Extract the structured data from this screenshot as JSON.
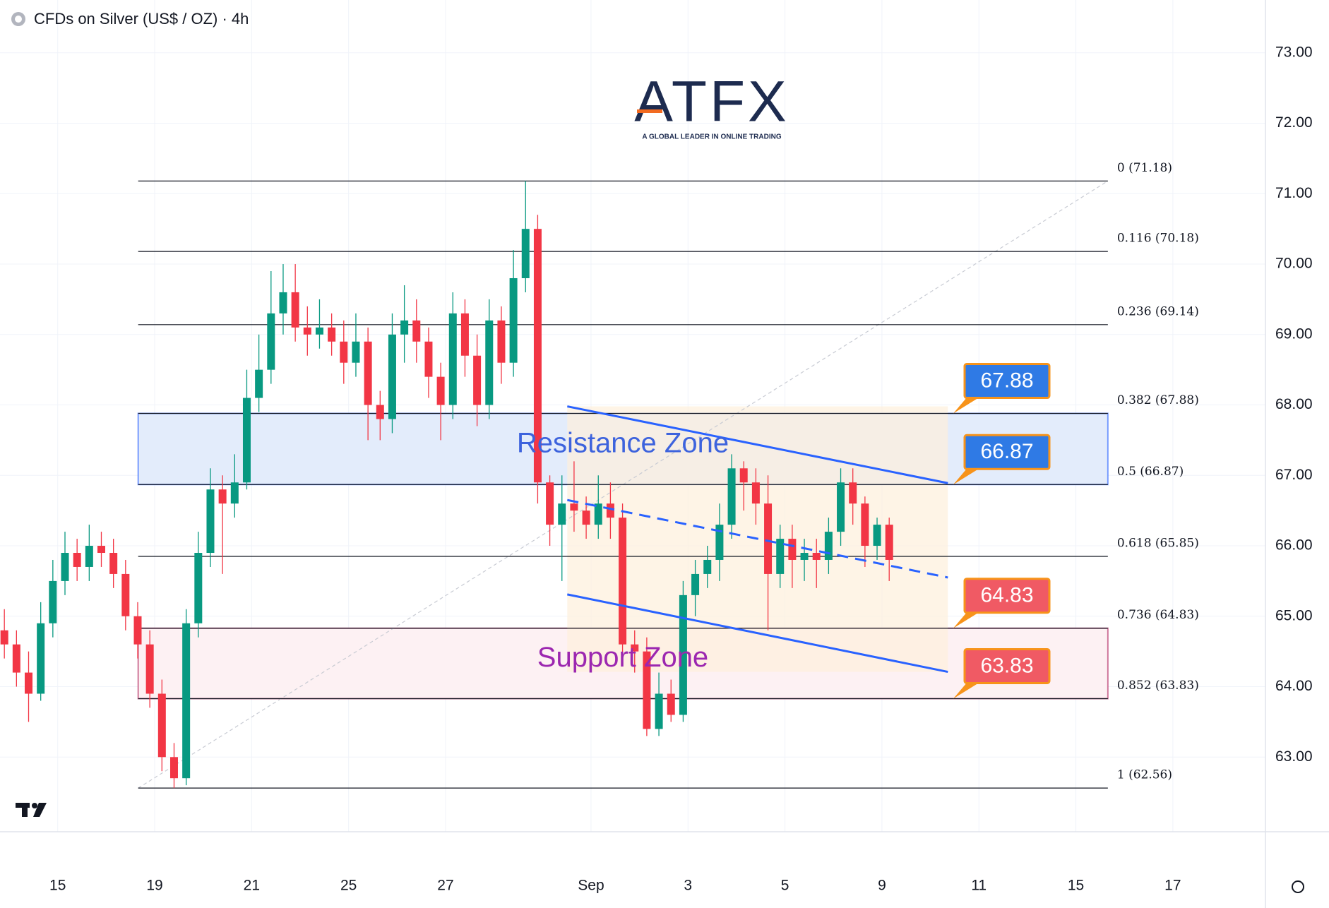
{
  "chart_data": {
    "type": "candlestick",
    "title": "CFDs on Silver (US$ / OZ) · 4h",
    "watermark": {
      "name": "ATFX",
      "tagline": "A GLOBAL LEADER IN ONLINE TRADING"
    },
    "up_color": "#089981",
    "down_color": "#f23645",
    "grid": true,
    "xlim": [
      -1.19,
      24.91
    ],
    "ylim": [
      61.94,
      73.75
    ],
    "xticks": [
      {
        "value": 0,
        "label": "15"
      },
      {
        "value": 2,
        "label": "19"
      },
      {
        "value": 4,
        "label": "21"
      },
      {
        "value": 6,
        "label": "25"
      },
      {
        "value": 8,
        "label": "27"
      },
      {
        "value": 11,
        "label": "Sep"
      },
      {
        "value": 13,
        "label": "3"
      },
      {
        "value": 15,
        "label": "5"
      },
      {
        "value": 17,
        "label": "9"
      },
      {
        "value": 19,
        "label": "11"
      },
      {
        "value": 21,
        "label": "15"
      },
      {
        "value": 23,
        "label": "17"
      }
    ],
    "yticks": [
      {
        "value": 63,
        "label": "63.00"
      },
      {
        "value": 64,
        "label": "64.00"
      },
      {
        "value": 65,
        "label": "65.00"
      },
      {
        "value": 66,
        "label": "66.00"
      },
      {
        "value": 67,
        "label": "67.00"
      },
      {
        "value": 68,
        "label": "68.00"
      },
      {
        "value": 69,
        "label": "69.00"
      },
      {
        "value": 70,
        "label": "70.00"
      },
      {
        "value": 71,
        "label": "71.00"
      },
      {
        "value": 72,
        "label": "72.00"
      },
      {
        "value": 73,
        "label": "73.00"
      }
    ],
    "x": [
      -1.1,
      -0.85,
      -0.6,
      -0.35,
      -0.1,
      0.15,
      0.4,
      0.65,
      0.9,
      1.15,
      1.4,
      1.65,
      1.9,
      2.15,
      2.4,
      2.65,
      2.9,
      3.15,
      3.4,
      3.65,
      3.9,
      4.15,
      4.4,
      4.65,
      4.9,
      5.15,
      5.4,
      5.65,
      5.9,
      6.15,
      6.4,
      6.65,
      6.9,
      7.15,
      7.4,
      7.65,
      7.9,
      8.15,
      8.4,
      8.65,
      8.9,
      9.15,
      9.4,
      9.65,
      9.9,
      10.15,
      10.4,
      10.65,
      10.9,
      11.15,
      11.4,
      11.65,
      11.9,
      12.15,
      12.4,
      12.65,
      12.9,
      13.15,
      13.4,
      13.65,
      13.9,
      14.15,
      14.4,
      14.65,
      14.9,
      15.15,
      15.4,
      15.65,
      15.9,
      16.15,
      16.4,
      16.65,
      16.9,
      17.15
    ],
    "open": [
      64.8,
      64.6,
      64.2,
      63.9,
      64.9,
      65.5,
      65.9,
      65.7,
      66.0,
      65.9,
      65.6,
      65.0,
      64.6,
      63.9,
      63.0,
      62.7,
      64.9,
      65.9,
      66.8,
      66.6,
      66.9,
      68.1,
      68.5,
      69.3,
      69.6,
      69.1,
      69.0,
      69.1,
      68.9,
      68.6,
      68.9,
      68.0,
      67.8,
      69.0,
      69.2,
      68.9,
      68.4,
      68.0,
      69.3,
      68.7,
      68.0,
      69.2,
      68.6,
      69.8,
      70.5,
      66.9,
      66.3,
      66.6,
      66.5,
      66.3,
      66.6,
      66.4,
      64.6,
      64.5,
      63.4,
      63.9,
      63.6,
      65.3,
      65.6,
      65.8,
      66.3,
      67.1,
      66.9,
      66.6,
      65.6,
      66.1,
      65.8,
      65.9,
      65.8,
      66.2,
      66.9,
      66.6,
      66.0,
      66.3
    ],
    "high": [
      65.1,
      64.8,
      64.5,
      65.2,
      65.8,
      66.2,
      66.1,
      66.3,
      66.2,
      66.1,
      65.8,
      65.2,
      64.8,
      64.1,
      63.2,
      65.1,
      66.2,
      67.1,
      67.0,
      67.3,
      68.5,
      69.0,
      69.9,
      70.0,
      70.0,
      69.4,
      69.5,
      69.3,
      69.2,
      69.3,
      69.1,
      68.2,
      69.3,
      69.7,
      69.5,
      69.1,
      68.6,
      69.6,
      69.5,
      69.0,
      69.5,
      69.4,
      70.2,
      71.18,
      70.7,
      67.0,
      67.0,
      67.2,
      66.7,
      67.0,
      66.9,
      66.6,
      64.8,
      64.7,
      64.2,
      64.1,
      65.5,
      65.8,
      66.0,
      66.6,
      67.3,
      67.2,
      67.1,
      67.0,
      66.3,
      66.3,
      66.1,
      66.1,
      66.4,
      67.1,
      67.1,
      66.7,
      66.4,
      66.4
    ],
    "low": [
      64.4,
      64.0,
      63.5,
      63.8,
      64.7,
      65.3,
      65.5,
      65.5,
      65.7,
      65.4,
      64.8,
      64.4,
      63.7,
      62.8,
      62.56,
      62.6,
      64.7,
      65.7,
      65.6,
      66.4,
      66.8,
      67.9,
      68.3,
      69.0,
      68.9,
      68.7,
      68.8,
      68.7,
      68.3,
      68.4,
      67.5,
      67.5,
      67.6,
      68.6,
      68.6,
      68.1,
      67.5,
      67.8,
      68.4,
      67.7,
      67.8,
      68.3,
      68.4,
      69.6,
      66.6,
      66.0,
      65.5,
      66.2,
      66.1,
      66.1,
      66.1,
      64.4,
      64.2,
      63.3,
      63.3,
      63.5,
      63.5,
      65.0,
      65.4,
      65.5,
      66.1,
      66.5,
      66.3,
      64.8,
      65.4,
      65.4,
      65.5,
      65.4,
      65.6,
      66.0,
      66.3,
      65.7,
      65.8,
      65.5
    ],
    "close": [
      64.6,
      64.2,
      63.9,
      64.9,
      65.5,
      65.9,
      65.7,
      66.0,
      65.9,
      65.6,
      65.0,
      64.6,
      63.9,
      63.0,
      62.7,
      64.9,
      65.9,
      66.8,
      66.6,
      66.9,
      68.1,
      68.5,
      69.3,
      69.6,
      69.1,
      69.0,
      69.1,
      68.9,
      68.6,
      68.9,
      68.0,
      67.8,
      69.0,
      69.2,
      68.9,
      68.4,
      68.0,
      69.3,
      68.7,
      68.0,
      69.2,
      68.6,
      69.8,
      70.5,
      66.9,
      66.3,
      66.6,
      66.5,
      66.3,
      66.6,
      66.4,
      64.6,
      64.5,
      63.4,
      63.9,
      63.6,
      65.3,
      65.6,
      65.8,
      66.3,
      67.1,
      66.9,
      66.6,
      65.6,
      66.1,
      65.8,
      65.9,
      65.8,
      66.2,
      66.9,
      66.6,
      66.0,
      66.3,
      65.8
    ],
    "fib": {
      "x": [
        1.66,
        21.66
      ],
      "levels": [
        {
          "value": 71.18,
          "label": "0 (71.18)"
        },
        {
          "value": 70.18,
          "label": "0.116 (70.18)"
        },
        {
          "value": 69.14,
          "label": "0.236 (69.14)"
        },
        {
          "value": 67.88,
          "label": "0.382 (67.88)"
        },
        {
          "value": 66.87,
          "label": "0.5 (66.87)"
        },
        {
          "value": 65.85,
          "label": "0.618 (65.85)"
        },
        {
          "value": 64.83,
          "label": "0.736 (64.83)"
        },
        {
          "value": 63.83,
          "label": "0.852 (63.83)"
        },
        {
          "value": 62.56,
          "label": "1 (62.56)"
        }
      ]
    },
    "zones": [
      {
        "label": "Resistance Zone",
        "range": [
          66.87,
          67.88
        ],
        "color": "#2962ff",
        "fill": "#e3ecfb",
        "text_color": "#3d63dd"
      },
      {
        "label": "Support Zone",
        "range": [
          63.83,
          64.83
        ],
        "color": "#b0245e",
        "fill": "#fdf1f3",
        "text_color": "#9c27b0"
      }
    ],
    "channel": {
      "x": [
        10.51,
        18.36
      ],
      "upper": [
        67.98,
        66.89
      ],
      "middle": [
        66.65,
        65.55
      ],
      "lower": [
        65.31,
        64.21
      ],
      "color": "#2962ff",
      "fill": "#fdf0dc"
    },
    "price_labels": [
      {
        "value": 67.88,
        "color": "#2f7ae5"
      },
      {
        "value": 66.87,
        "color": "#2f7ae5"
      },
      {
        "value": 64.83,
        "color": "#f05a64"
      },
      {
        "value": 63.83,
        "color": "#f05a64"
      }
    ]
  }
}
